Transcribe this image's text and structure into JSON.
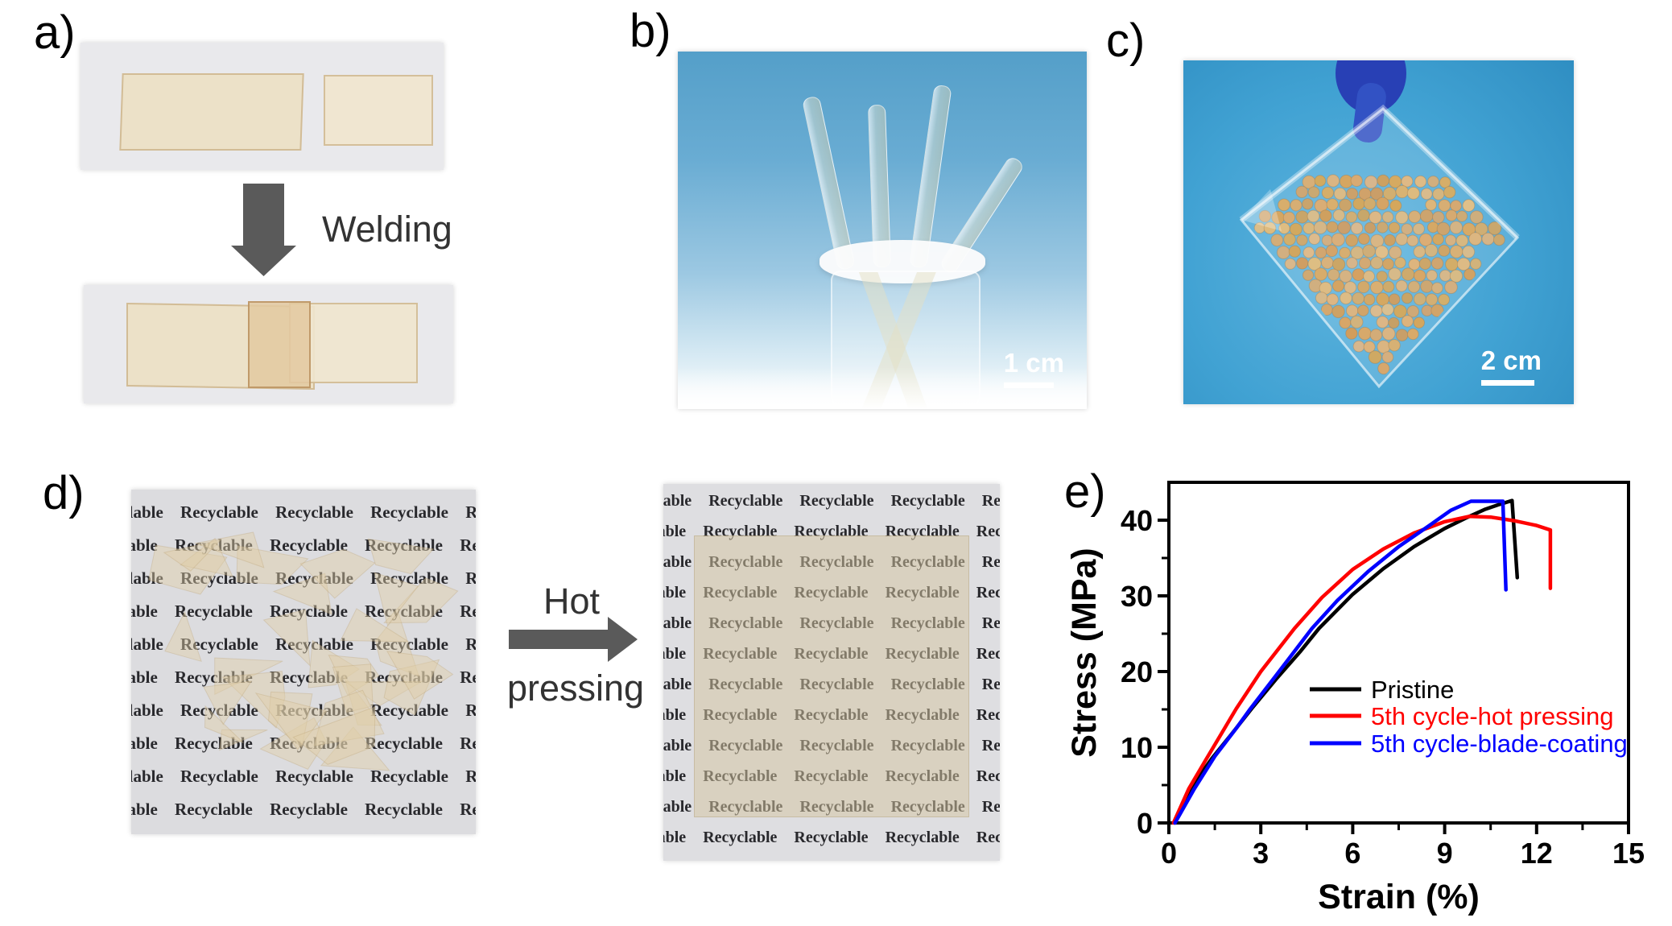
{
  "panels": {
    "a": {
      "label": "a)",
      "process_label": "Welding"
    },
    "b": {
      "label": "b)",
      "scale_bar_label": "1 cm"
    },
    "c": {
      "label": "c)",
      "scale_bar_label": "2 cm"
    },
    "d": {
      "label": "d)",
      "process_label_line1": "Hot",
      "process_label_line2": "pressing",
      "paper_word": "Recyclable"
    },
    "e": {
      "label": "e)"
    }
  },
  "colors": {
    "arrow": "#5a5a5a",
    "panel_label": "#000000",
    "process_text": "#333333",
    "film": "#ecdfc4",
    "film_overlap": "#e3c9a0",
    "paper_photo_bg": "#e9e9ec",
    "paper_d_bg": "#dcdcdf",
    "paper_text": "#28282c",
    "photo_b_blue_top": "#549fc9",
    "photo_c_blue": "#3ea3d4",
    "soybean": "#d2a055",
    "glove_blue": "#2840b5",
    "scale_text": "#ffffff"
  },
  "chart_data": {
    "type": "line",
    "title": "",
    "xlabel": "Strain (%)",
    "ylabel": "Stress (MPa)",
    "xlim": [
      0,
      15
    ],
    "ylim": [
      0,
      45
    ],
    "xticks": [
      0,
      3,
      6,
      9,
      12,
      15
    ],
    "yticks": [
      0,
      10,
      20,
      30,
      40
    ],
    "x_minor_step": 1.5,
    "y_minor_step": 5,
    "grid": false,
    "legend_position": "inside-middle-right",
    "series": [
      {
        "name": "Pristine",
        "color": "#000000",
        "points": [
          [
            0.2,
            0
          ],
          [
            0.7,
            4.5
          ],
          [
            1.4,
            8.5
          ],
          [
            2.0,
            11.5
          ],
          [
            2.7,
            15.1
          ],
          [
            3.5,
            19.0
          ],
          [
            4.3,
            22.7
          ],
          [
            4.9,
            25.7
          ],
          [
            6.0,
            30.2
          ],
          [
            7.0,
            33.6
          ],
          [
            8.0,
            36.5
          ],
          [
            9.0,
            38.9
          ],
          [
            9.7,
            40.3
          ],
          [
            10.3,
            41.4
          ],
          [
            10.8,
            42.1
          ],
          [
            11.2,
            42.6
          ],
          [
            11.37,
            32.4
          ]
        ]
      },
      {
        "name": "5th cycle-hot pressing",
        "color": "#ff0000",
        "points": [
          [
            0.15,
            0
          ],
          [
            0.65,
            4.5
          ],
          [
            1.2,
            8.3
          ],
          [
            2.2,
            15.1
          ],
          [
            3.0,
            20.0
          ],
          [
            4.1,
            25.7
          ],
          [
            5.0,
            29.8
          ],
          [
            6.0,
            33.5
          ],
          [
            7.0,
            36.2
          ],
          [
            8.0,
            38.3
          ],
          [
            9.0,
            39.8
          ],
          [
            9.8,
            40.5
          ],
          [
            10.5,
            40.4
          ],
          [
            11.3,
            39.9
          ],
          [
            12.0,
            39.3
          ],
          [
            12.45,
            38.7
          ],
          [
            12.45,
            31.0
          ]
        ]
      },
      {
        "name": "5th cycle-blade-coating",
        "color": "#0000ff",
        "points": [
          [
            0.2,
            0
          ],
          [
            0.83,
            4.5
          ],
          [
            1.5,
            8.8
          ],
          [
            2.2,
            12.5
          ],
          [
            2.66,
            15.1
          ],
          [
            3.5,
            19.5
          ],
          [
            4.67,
            25.7
          ],
          [
            5.5,
            29.4
          ],
          [
            6.5,
            33.2
          ],
          [
            7.5,
            36.5
          ],
          [
            8.5,
            39.3
          ],
          [
            9.2,
            41.3
          ],
          [
            9.86,
            42.5
          ],
          [
            10.9,
            42.5
          ],
          [
            11.0,
            30.8
          ]
        ]
      }
    ]
  }
}
